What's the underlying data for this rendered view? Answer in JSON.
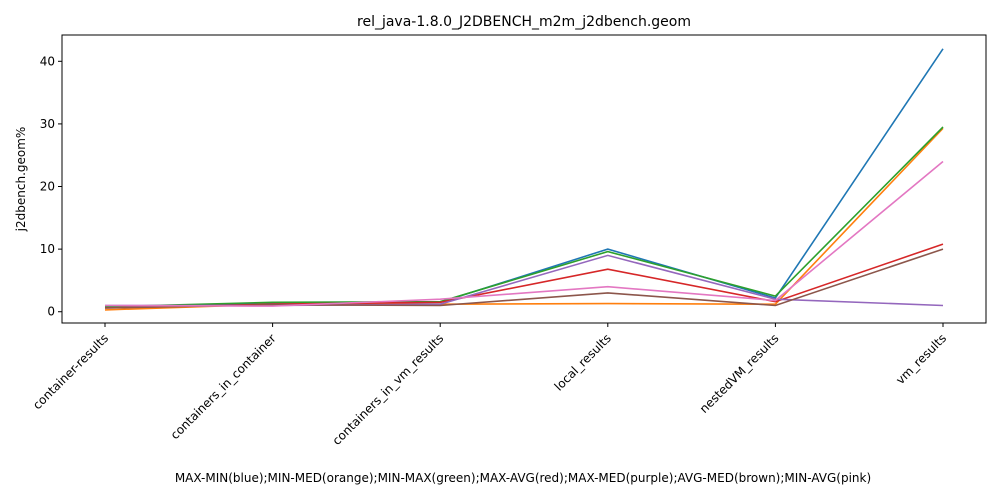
{
  "chart_data": {
    "type": "line",
    "title": "rel_java-1.8.0_J2DBENCH_m2m_j2dbench.geom",
    "xlabel": "MAX-MIN(blue);MIN-MED(orange);MIN-MAX(green);MAX-AVG(red);MAX-MED(purple);AVG-MED(brown);MIN-AVG(pink)",
    "ylabel": "j2dbench.geom%",
    "categories": [
      "container-results",
      "containers_in_container",
      "containers_in_vm_results",
      "local_results",
      "nestedVM_results",
      "vm_results"
    ],
    "ylim": [
      -1.8,
      44.2
    ],
    "yticks": [
      0,
      10,
      20,
      30,
      40
    ],
    "grid": false,
    "series": [
      {
        "color": "#1f77b4",
        "values": [
          0.7,
          1.4,
          1.5,
          10.0,
          2.2,
          42.0
        ]
      },
      {
        "color": "#ff7f0e",
        "values": [
          0.3,
          1.2,
          1.2,
          1.3,
          1.2,
          29.3
        ]
      },
      {
        "color": "#2ca02c",
        "values": [
          0.8,
          1.5,
          1.6,
          9.6,
          2.5,
          29.5
        ]
      },
      {
        "color": "#d62728",
        "values": [
          0.6,
          1.2,
          1.5,
          6.8,
          1.6,
          10.8
        ]
      },
      {
        "color": "#9467bd",
        "values": [
          1.0,
          1.0,
          1.2,
          9.0,
          2.0,
          1.0
        ]
      },
      {
        "color": "#8c564b",
        "values": [
          0.6,
          1.1,
          1.0,
          3.0,
          1.0,
          10.0
        ]
      },
      {
        "color": "#e377c2",
        "values": [
          1.0,
          0.9,
          2.0,
          4.0,
          1.8,
          24.0
        ]
      }
    ]
  }
}
